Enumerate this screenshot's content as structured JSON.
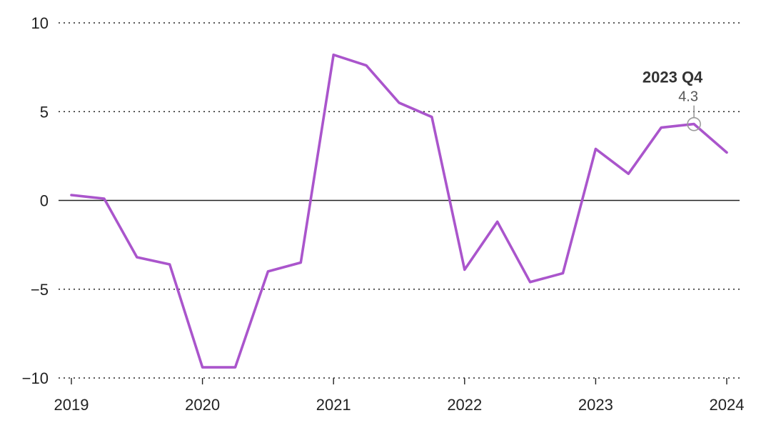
{
  "chart_data": {
    "type": "line",
    "title": "",
    "xlabel": "",
    "ylabel": "",
    "xlim": [
      2019,
      2024
    ],
    "ylim": [
      -10,
      10
    ],
    "y_ticks": [
      10,
      5,
      0,
      -5,
      -10
    ],
    "y_tick_labels": [
      "10",
      "5",
      "0",
      "−5",
      "−10"
    ],
    "x_ticks": [
      2019,
      2020,
      2021,
      2022,
      2023,
      2024
    ],
    "x_tick_labels": [
      "2019",
      "2020",
      "2021",
      "2022",
      "2023",
      "2024"
    ],
    "grid": "horizontal dotted",
    "line_color": "#aa55cc",
    "series": [
      {
        "x": [
          2019.0,
          2019.25,
          2019.5,
          2019.75,
          2020.0,
          2020.25,
          2020.5,
          2020.75,
          2021.0,
          2021.25,
          2021.5,
          2021.75,
          2022.0,
          2022.25,
          2022.5,
          2022.75,
          2023.0,
          2023.25,
          2023.5,
          2023.75,
          2024.0
        ],
        "values": [
          0.3,
          0.1,
          -3.2,
          -3.6,
          -9.4,
          -9.4,
          -4.0,
          -3.5,
          8.2,
          7.6,
          5.5,
          4.7,
          -3.9,
          -1.2,
          -4.6,
          -4.1,
          2.9,
          1.5,
          4.1,
          4.3,
          2.7
        ]
      }
    ],
    "annotation": {
      "label": "2023 Q4",
      "value_label": "4.3",
      "x": 2023.75,
      "y": 4.3
    }
  }
}
